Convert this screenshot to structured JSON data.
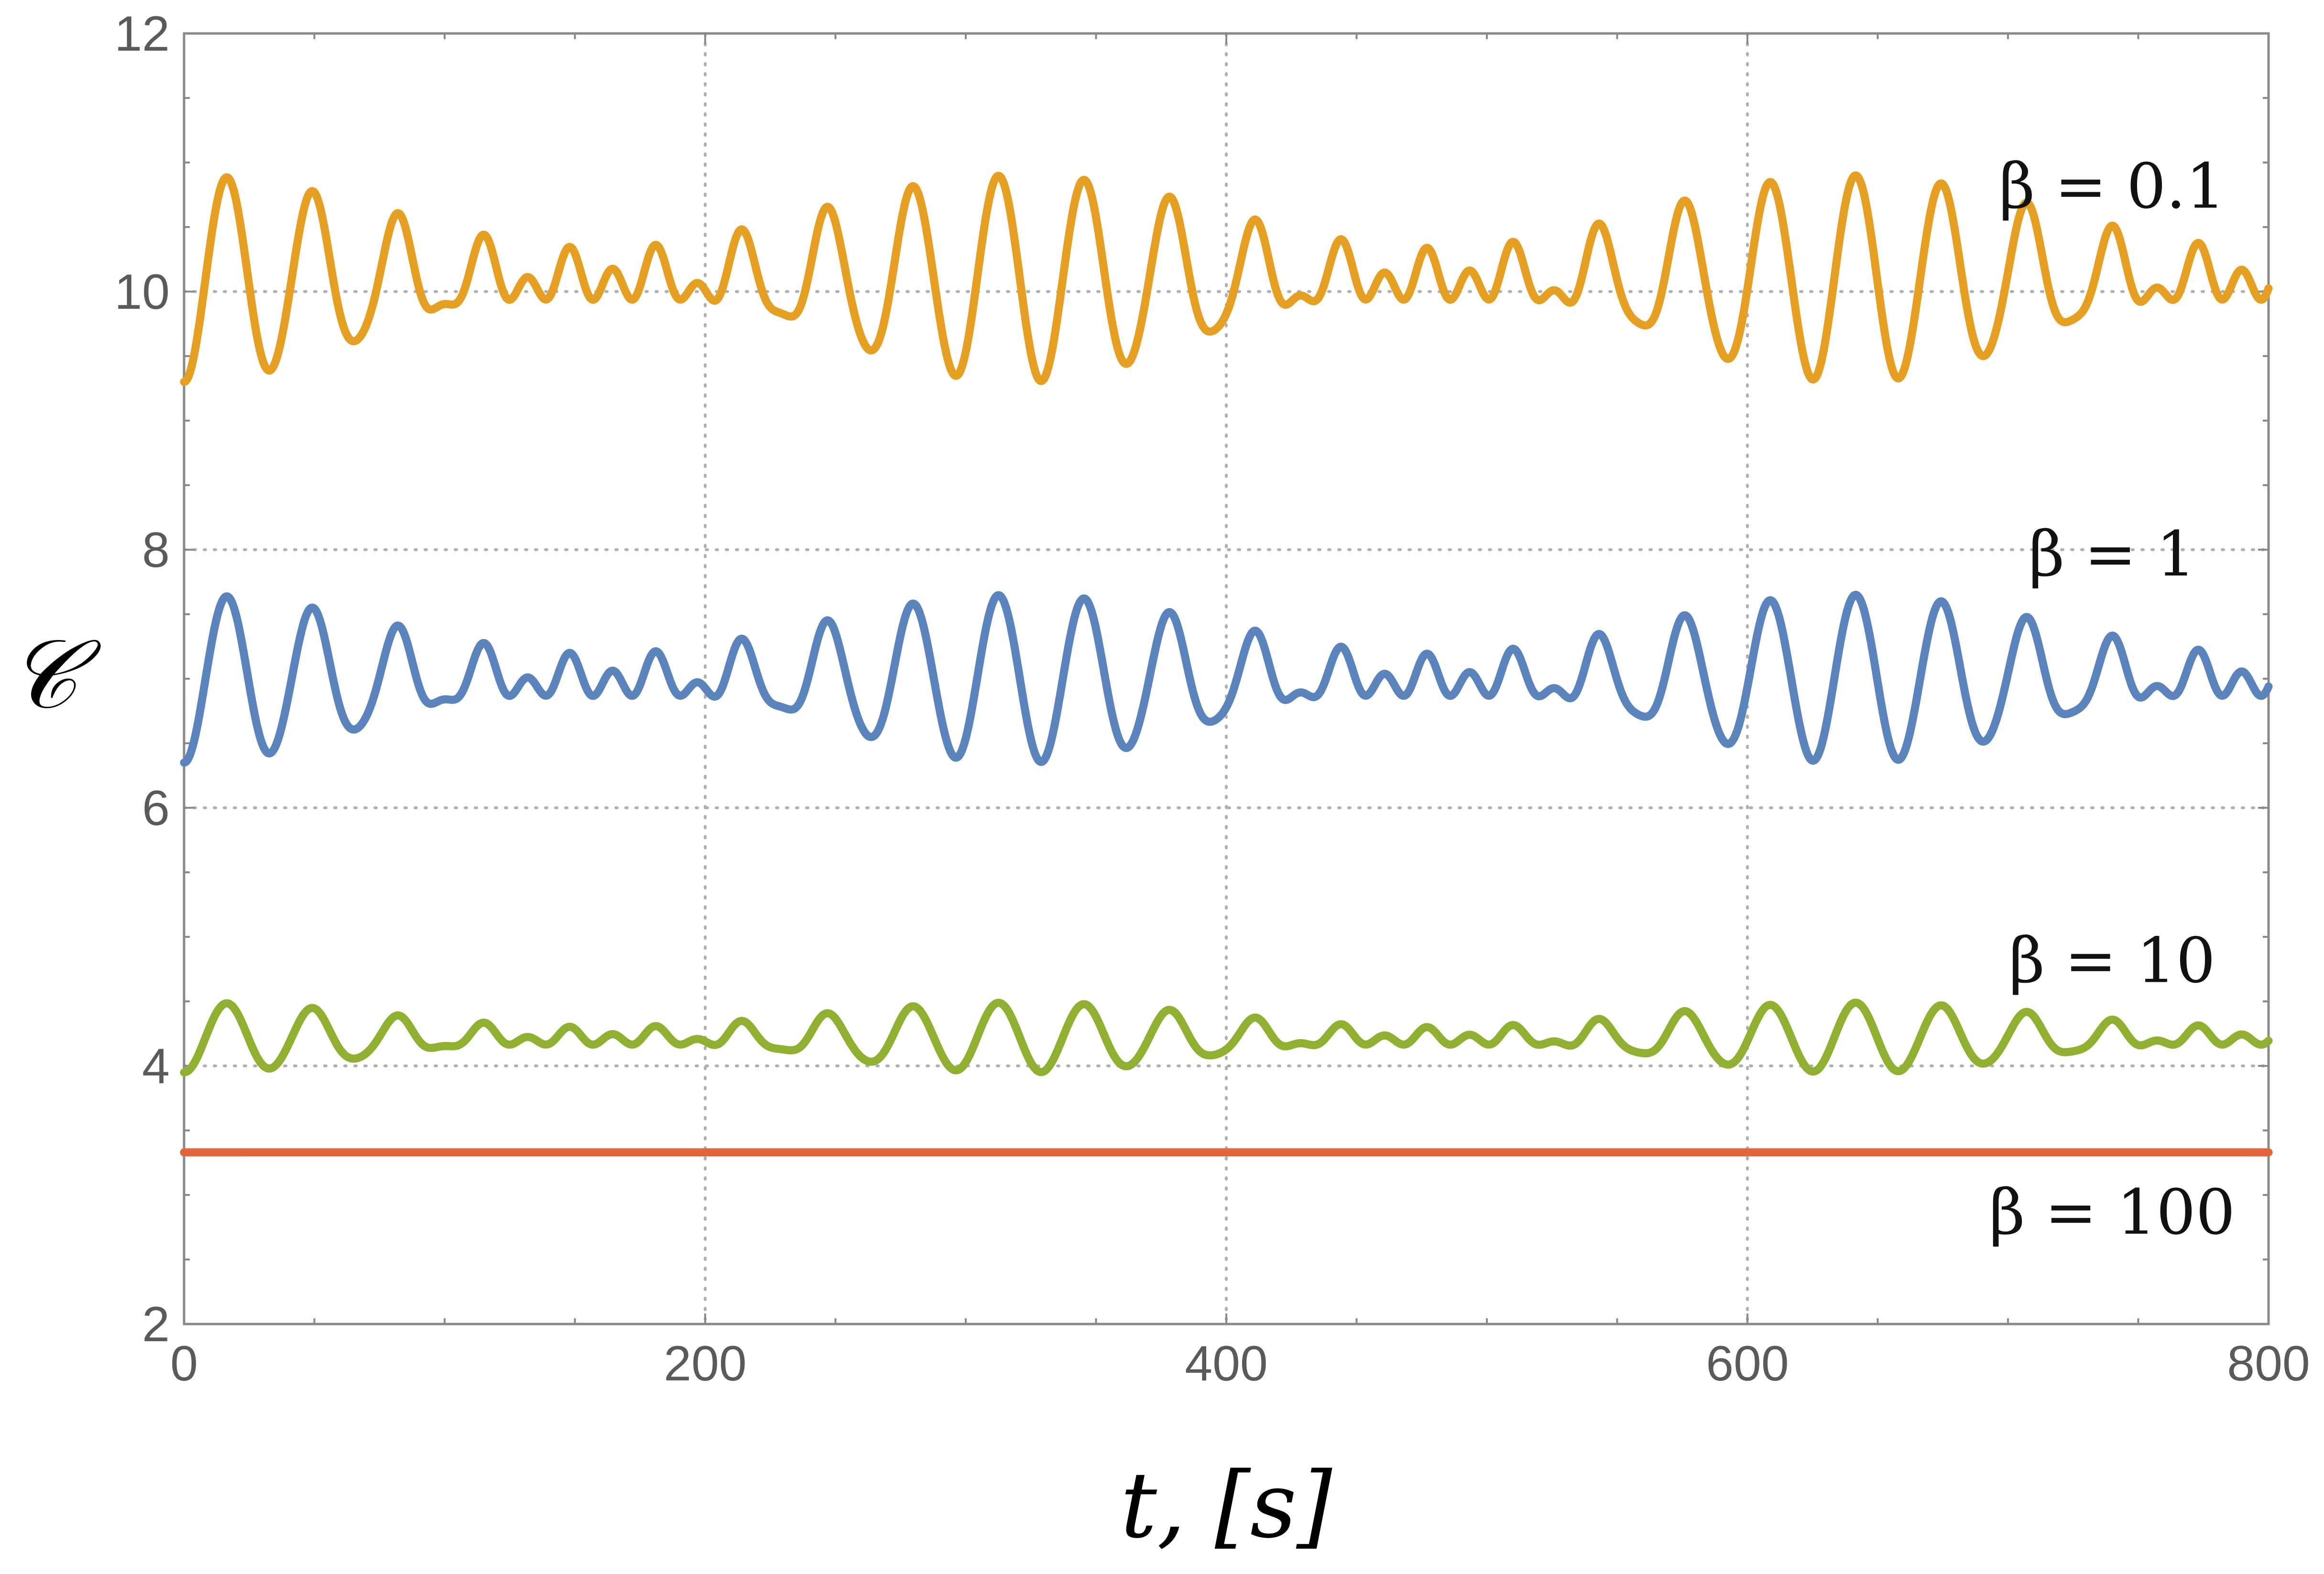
{
  "chart_data": {
    "type": "line",
    "title": "",
    "xlabel": "t, [s]",
    "ylabel": "𝒞",
    "xlim": [
      0,
      800
    ],
    "ylim": [
      2,
      12
    ],
    "xticks": [
      0,
      200,
      400,
      600,
      800
    ],
    "yticks": [
      2,
      4,
      6,
      8,
      10,
      12
    ],
    "grid": "dotted at major ticks",
    "legend": "none (inline labels)",
    "series": [
      {
        "label": "β = 0.1",
        "color": "#E5A024",
        "mean": 10.1,
        "start": 9.15,
        "main_amplitude": 0.8,
        "main_period_s": 32.9,
        "beat_period_s": 320,
        "max": 10.9,
        "min": 9.15
      },
      {
        "label": "β = 1",
        "color": "#5B83BC",
        "mean": 7.0,
        "start": 6.25,
        "main_amplitude": 0.65,
        "main_period_s": 32.9,
        "beat_period_s": 320,
        "max": 7.65,
        "min": 6.25
      },
      {
        "label": "β = 10",
        "color": "#8FB031",
        "mean": 4.22,
        "start": 3.9,
        "main_amplitude": 0.27,
        "main_period_s": 32.9,
        "beat_period_s": 320,
        "max": 4.5,
        "min": 3.9
      },
      {
        "label": "β = 100",
        "color": "#E4643C",
        "mean": 3.33,
        "start": 3.33,
        "main_amplitude": 0,
        "main_period_s": 32.9,
        "beat_period_s": 320,
        "max": 3.33,
        "min": 3.33
      }
    ]
  },
  "annotations": [
    {
      "text": "β = 0.1",
      "x": 740,
      "y": 10.65
    },
    {
      "text": "β = 1",
      "x": 740,
      "y": 7.8
    },
    {
      "text": "β = 10",
      "x": 740,
      "y": 4.65
    },
    {
      "text": "β = 100",
      "x": 740,
      "y": 2.7
    }
  ]
}
